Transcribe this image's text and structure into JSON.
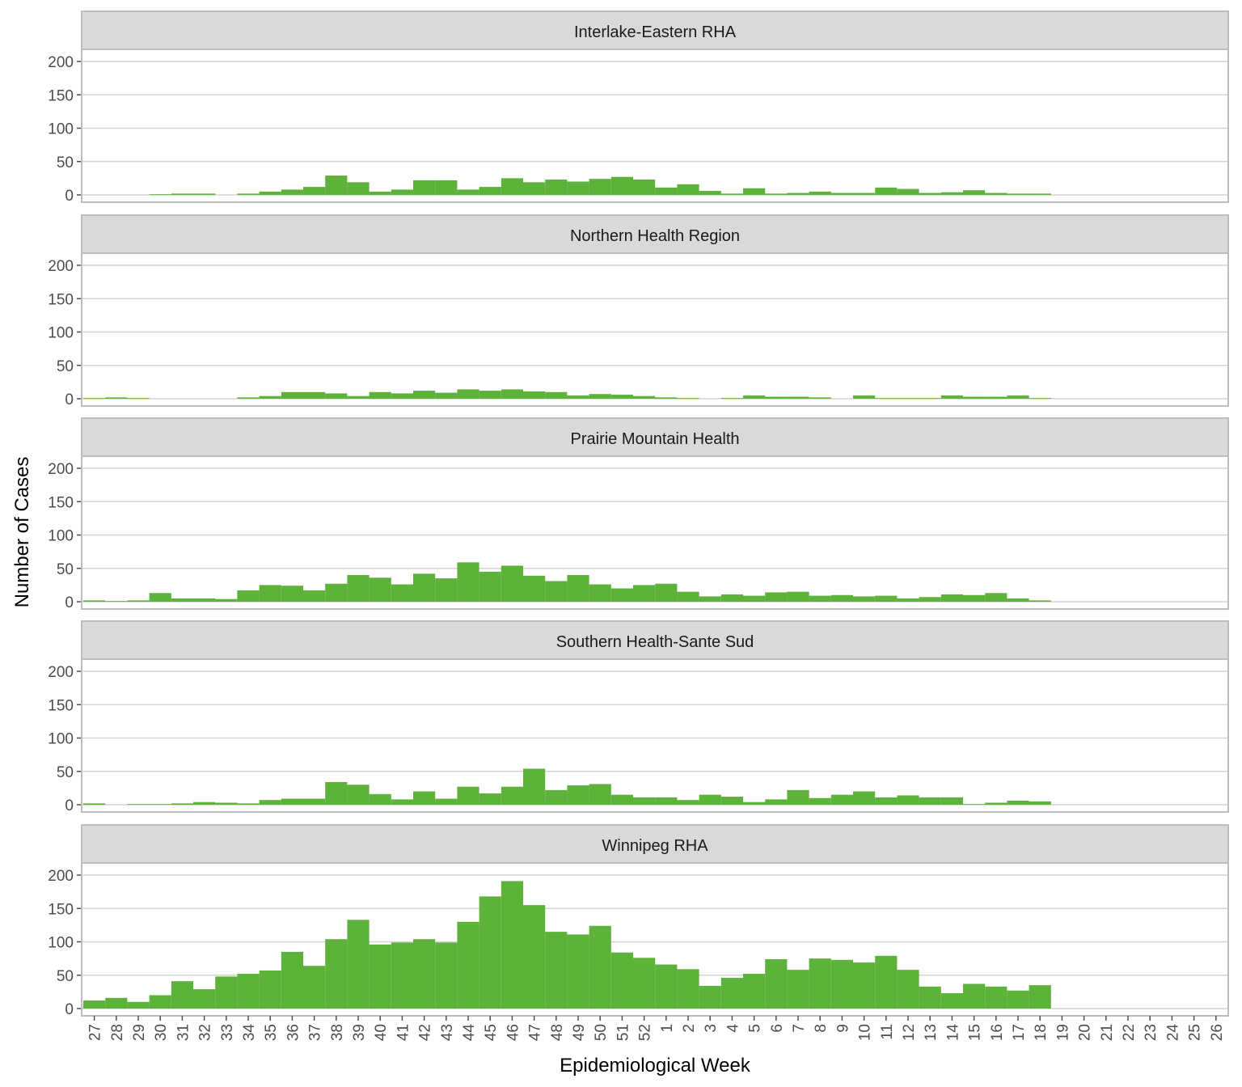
{
  "chart_data": {
    "type": "bar",
    "xlabel": "Epidemiological Week",
    "ylabel": "Number of Cases",
    "ylim": [
      0,
      200
    ],
    "yticks": [
      0,
      50,
      100,
      150,
      200
    ],
    "bar_color": "#5db339",
    "categories": [
      "27",
      "28",
      "29",
      "30",
      "31",
      "32",
      "33",
      "34",
      "35",
      "36",
      "37",
      "38",
      "39",
      "40",
      "41",
      "42",
      "43",
      "44",
      "45",
      "46",
      "47",
      "48",
      "49",
      "50",
      "51",
      "52",
      "1",
      "2",
      "3",
      "4",
      "5",
      "6",
      "7",
      "8",
      "9",
      "10",
      "11",
      "12",
      "13",
      "14",
      "15",
      "16",
      "17",
      "18",
      "19",
      "20",
      "21",
      "22",
      "23",
      "24",
      "25",
      "26"
    ],
    "panels": [
      {
        "title": "Interlake-Eastern RHA",
        "values": [
          0,
          0,
          0,
          1,
          2,
          2,
          0,
          2,
          5,
          8,
          12,
          29,
          19,
          5,
          8,
          22,
          22,
          8,
          12,
          25,
          19,
          23,
          20,
          24,
          27,
          23,
          11,
          16,
          6,
          2,
          10,
          2,
          3,
          5,
          3,
          3,
          11,
          9,
          3,
          4,
          7,
          3,
          2,
          2,
          0,
          0,
          0,
          0,
          0,
          0,
          0,
          0
        ]
      },
      {
        "title": "Northern Health Region",
        "values": [
          1,
          2,
          1,
          0,
          0,
          0,
          0,
          2,
          4,
          10,
          10,
          8,
          4,
          10,
          8,
          12,
          9,
          14,
          12,
          14,
          11,
          10,
          5,
          7,
          6,
          4,
          2,
          1,
          0,
          1,
          5,
          3,
          3,
          2,
          0,
          5,
          1,
          1,
          1,
          5,
          3,
          3,
          5,
          1,
          0,
          0,
          0,
          0,
          0,
          0,
          0,
          0
        ]
      },
      {
        "title": "Prairie Mountain Health",
        "values": [
          2,
          1,
          2,
          13,
          5,
          5,
          4,
          17,
          25,
          24,
          17,
          27,
          40,
          36,
          26,
          42,
          35,
          59,
          45,
          54,
          39,
          31,
          40,
          26,
          20,
          25,
          27,
          15,
          8,
          11,
          9,
          14,
          15,
          9,
          10,
          8,
          9,
          5,
          7,
          11,
          10,
          13,
          5,
          2,
          0,
          0,
          0,
          0,
          0,
          0,
          0,
          0
        ]
      },
      {
        "title": "Southern Health-Sante Sud",
        "values": [
          2,
          0,
          1,
          1,
          2,
          4,
          3,
          2,
          7,
          9,
          9,
          34,
          30,
          16,
          8,
          20,
          9,
          27,
          17,
          27,
          54,
          22,
          29,
          31,
          15,
          11,
          11,
          7,
          15,
          12,
          4,
          8,
          22,
          10,
          15,
          20,
          11,
          14,
          11,
          11,
          1,
          3,
          6,
          5,
          0,
          0,
          0,
          0,
          0,
          0,
          0,
          0
        ]
      },
      {
        "title": "Winnipeg RHA",
        "values": [
          12,
          16,
          10,
          20,
          41,
          29,
          48,
          52,
          57,
          85,
          64,
          104,
          133,
          96,
          99,
          104,
          99,
          130,
          168,
          191,
          155,
          115,
          111,
          124,
          84,
          76,
          66,
          59,
          34,
          46,
          52,
          74,
          58,
          75,
          73,
          69,
          79,
          58,
          33,
          23,
          37,
          33,
          27,
          35,
          0,
          0,
          0,
          0,
          0,
          0,
          0,
          0
        ]
      }
    ]
  }
}
